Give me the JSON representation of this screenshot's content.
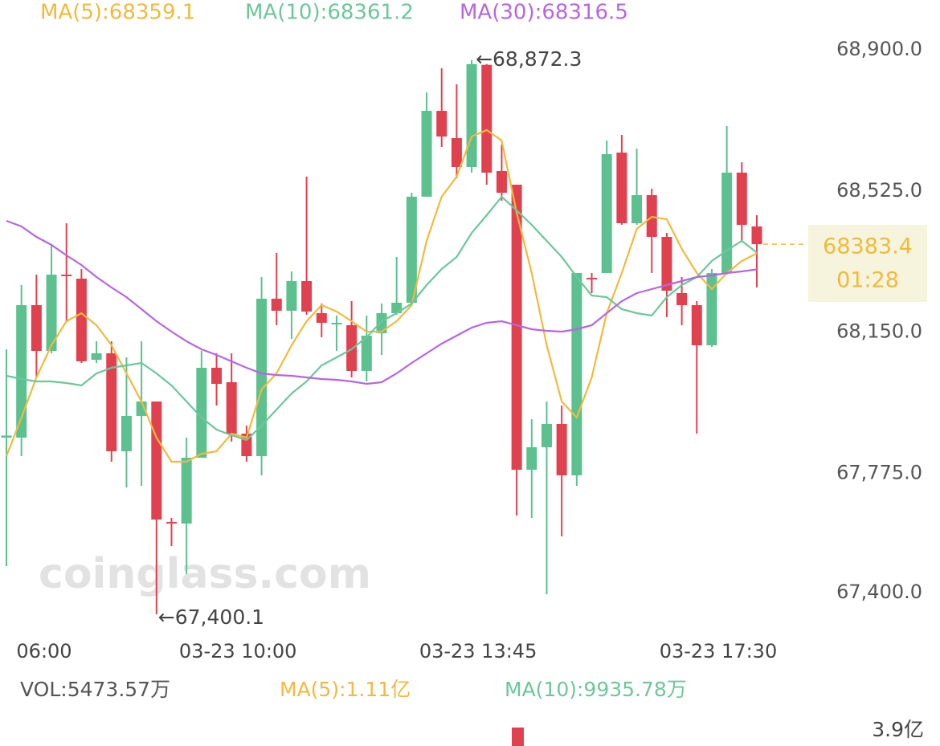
{
  "chart_data": {
    "type": "candlestick",
    "categories": [
      null,
      null,
      "06:00",
      null,
      null,
      null,
      null,
      null,
      null,
      null,
      null,
      null,
      null,
      null,
      null,
      "03-23 10:00",
      null,
      null,
      null,
      null,
      null,
      null,
      null,
      null,
      null,
      null,
      null,
      null,
      null,
      null,
      null,
      "03-23 13:45",
      null,
      null,
      null,
      null,
      null,
      null,
      null,
      null,
      null,
      null,
      null,
      null,
      null,
      null,
      null,
      "03-23 17:30",
      null,
      null,
      null
    ],
    "open": [
      67869.5,
      67869.5,
      68221.5,
      68099.9,
      68302.6,
      68291.9,
      68076.4,
      68093.5,
      67833.2,
      67927.1,
      67965.5,
      67645.5,
      67641.2,
      67816.1,
      68055.1,
      68016.7,
      67880.1,
      67820.4,
      68238.6,
      68206.6,
      68285.5,
      68200.2,
      68172.0,
      68168.2,
      68046.6,
      68146.8,
      68200.2,
      68227.9,
      68509.6,
      68737.8,
      68665.3,
      68588.5,
      68860.0,
      68577.8,
      68541.6,
      67784.1,
      67843.9,
      67905.7,
      67769.2,
      68294.1,
      68306.9,
      68626.9,
      68439.1,
      68513.8,
      68402.9,
      68253.5,
      68221.5,
      68114.8,
      68306.9,
      68573.6,
      68430.6
    ],
    "high": [
      68104.2,
      68274.9,
      68302.6,
      68381.5,
      68439.1,
      68317.5,
      68125.5,
      68125.5,
      68082.8,
      68125.5,
      67965.5,
      67656.1,
      67869.5,
      68099.9,
      68093.5,
      68093.5,
      67901.5,
      68296.2,
      68360.2,
      68311.1,
      68562.9,
      68225.8,
      68193.8,
      68232.2,
      68193.8,
      68225.8,
      68349.5,
      68520.2,
      68786.9,
      68850.9,
      68808.3,
      68872.3,
      68862.0,
      68648.2,
      68541.6,
      67918.5,
      67965.5,
      67954.8,
      68306.9,
      68306.9,
      68658.9,
      68673.8,
      68637.6,
      68530.9,
      68413.5,
      68296.2,
      68232.2,
      68317.5,
      68697.3,
      68601.3,
      68460.5
    ],
    "low": [
      67528.1,
      67820.4,
      68029.5,
      68093.5,
      68178.8,
      68067.9,
      68067.9,
      67805.5,
      67737.2,
      67741.4,
      67400.1,
      67581.4,
      67506.8,
      67816.1,
      67954.8,
      67858.8,
      67805.5,
      67769.2,
      68168.2,
      68131.9,
      68195.9,
      68136.2,
      68099.9,
      68029.5,
      68018.8,
      68089.2,
      68195.9,
      68221.5,
      68509.6,
      68641.8,
      68558.6,
      68573.6,
      68541.6,
      68498.9,
      67662.5,
      67656.1,
      67453.4,
      67607.1,
      67741.4,
      68253.5,
      68306.9,
      68434.9,
      68434.9,
      68306.9,
      68189.5,
      68168.2,
      67880.1,
      68110.6,
      68302.6,
      68392.2,
      68268.5
    ],
    "close": [
      67875.0,
      68221.5,
      68099.9,
      68302.6,
      68300.5,
      68072.2,
      68093.5,
      67833.2,
      67927.1,
      67965.5,
      67651.8,
      67643.0,
      67816.1,
      68055.1,
      68012.4,
      67880.1,
      67820.4,
      68238.6,
      68206.6,
      68285.5,
      68204.4,
      68174.6,
      68174.6,
      68046.6,
      68140.4,
      68200.2,
      68227.9,
      68509.6,
      68737.8,
      68669.6,
      68588.5,
      68862.0,
      68573.6,
      68520.2,
      67784.1,
      67843.9,
      67905.7,
      67769.2,
      68306.9,
      68292.0,
      68622.6,
      68439.1,
      68513.8,
      68402.9,
      68259.9,
      68221.5,
      68114.8,
      68306.9,
      68573.6,
      68434.9,
      68383.4
    ],
    "up_color": "#5cc08f",
    "down_color": "#e0414f",
    "series": [
      {
        "name": "MA(5)",
        "label": "MA(5):68359.1",
        "color": "#f0ba3c",
        "values": [
          67820.4,
          67922.8,
          68029.5,
          68114.8,
          68178.8,
          68200.2,
          68168.2,
          68114.8,
          68040.2,
          67965.5,
          67869.5,
          67805.5,
          67805.5,
          67826.8,
          67833.2,
          67880.1,
          67869.5,
          67997.5,
          68040.2,
          68114.8,
          68178.8,
          68221.5,
          68204.4,
          68178.8,
          68151.1,
          68151.1,
          68178.8,
          68221.5,
          68392.2,
          68509.6,
          68562.9,
          68669.6,
          68686.6,
          68658.9,
          68466.9,
          68306.9,
          68114.8,
          67965.5,
          67922.8,
          68029.5,
          68200.2,
          68306.9,
          68424.2,
          68456.2,
          68449.8,
          68370.9,
          68306.9,
          68264.2,
          68306.9,
          68338.9,
          68359.1
        ]
      },
      {
        "name": "MA(10)",
        "label": "MA(10):68361.2",
        "color": "#6cc79b",
        "values": [
          68033.8,
          68025.2,
          68018.8,
          68018.8,
          68014.6,
          68008.2,
          68040.2,
          68055.1,
          68061.5,
          68067.9,
          68040.2,
          68008.2,
          67965.5,
          67922.8,
          67890.8,
          67875.9,
          67863.1,
          67901.5,
          67944.1,
          67986.8,
          68018.8,
          68061.5,
          68082.8,
          68104.2,
          68136.2,
          68178.8,
          68200.2,
          68225.8,
          68274.9,
          68317.5,
          68349.5,
          68413.5,
          68460.5,
          68509.6,
          68473.3,
          68434.9,
          68392.2,
          68349.5,
          68296.2,
          68247.1,
          68242.9,
          68210.8,
          68200.2,
          68193.8,
          68242.9,
          68274.9,
          68296.2,
          68338.9,
          68366.6,
          68392.2,
          68361.2
        ]
      },
      {
        "name": "MA(30)",
        "label": "MA(30):68316.5",
        "color": "#b865e2",
        "values": [
          68445.5,
          68430.6,
          68402.9,
          68381.5,
          68353.8,
          68328.2,
          68296.2,
          68268.5,
          68242.9,
          68210.8,
          68178.8,
          68151.1,
          68125.5,
          68104.2,
          68089.2,
          68072.2,
          68055.1,
          68040.2,
          68035.9,
          68033.8,
          68029.5,
          68025.2,
          68023.1,
          68018.8,
          68012.4,
          68016.7,
          68040.2,
          68067.9,
          68093.5,
          68119.1,
          68140.4,
          68161.8,
          68174.6,
          68178.8,
          68168.2,
          68157.5,
          68153.2,
          68151.1,
          68157.5,
          68168.2,
          68200.2,
          68232.2,
          68253.5,
          68264.2,
          68274.9,
          68285.5,
          68296.2,
          68300.5,
          68306.9,
          68311.1,
          68316.5
        ]
      }
    ],
    "ylim": [
      67400,
      68900
    ],
    "yticks": [
      {
        "value": 68900,
        "label": "68,900.0"
      },
      {
        "value": 68525,
        "label": "68,525.0"
      },
      {
        "value": 68150,
        "label": "68,150.0"
      },
      {
        "value": 67775,
        "label": "67,775.0"
      },
      {
        "value": 67400,
        "label": "67,400.0"
      }
    ],
    "grid": false,
    "high_marker": {
      "index": 31,
      "value": 68872.3,
      "label": "←68,872.3"
    },
    "low_marker": {
      "index": 10,
      "value": 67400.1,
      "label": "←67,400.1"
    },
    "last_price": 68383.4,
    "countdown": "01:28",
    "watermark": "coinglass.com",
    "volume": {
      "vol_label": "VOL:5473.57万",
      "ma5_label": "MA(5):1.11亿",
      "ma10_label": "MA(10):9935.78万",
      "axis_top": "3.9亿"
    }
  }
}
